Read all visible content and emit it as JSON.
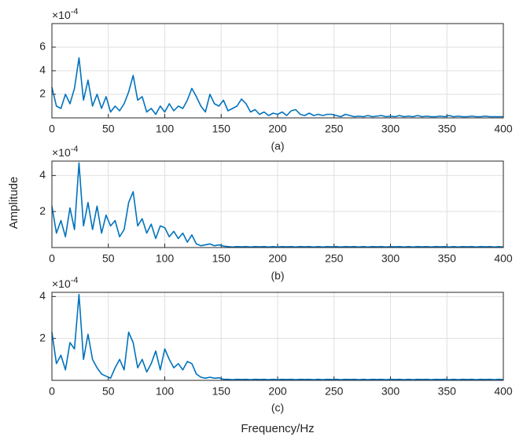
{
  "chart_data": [
    {
      "type": "line",
      "caption": "(a)",
      "y_exponent_base": "×10",
      "y_exponent": "-4",
      "color": "#0072bd",
      "grid": true,
      "xlim": [
        0,
        400
      ],
      "xticks": [
        0,
        50,
        100,
        150,
        200,
        250,
        300,
        350,
        400
      ],
      "ylim": [
        0,
        8
      ],
      "yticks": [
        2,
        4,
        6
      ],
      "x": [
        0,
        4,
        8,
        12,
        16,
        20,
        24,
        28,
        32,
        36,
        40,
        44,
        48,
        52,
        56,
        60,
        64,
        68,
        72,
        76,
        80,
        84,
        88,
        92,
        96,
        100,
        104,
        108,
        112,
        116,
        120,
        124,
        128,
        132,
        136,
        140,
        144,
        148,
        152,
        156,
        160,
        164,
        168,
        172,
        176,
        180,
        184,
        188,
        192,
        196,
        200,
        204,
        208,
        212,
        216,
        220,
        224,
        228,
        232,
        236,
        240,
        244,
        248,
        252,
        256,
        260,
        264,
        268,
        272,
        276,
        280,
        284,
        288,
        292,
        296,
        300,
        304,
        308,
        312,
        316,
        320,
        324,
        328,
        332,
        336,
        340,
        344,
        348,
        352,
        356,
        360,
        364,
        368,
        372,
        376,
        380,
        384,
        388,
        392,
        396,
        400
      ],
      "values": [
        2.6,
        1.0,
        0.8,
        2.0,
        1.2,
        2.5,
        5.1,
        1.5,
        3.2,
        1.0,
        2.0,
        0.8,
        1.8,
        0.5,
        1.0,
        0.6,
        1.2,
        2.2,
        3.6,
        1.5,
        1.8,
        0.5,
        0.8,
        0.3,
        1.0,
        0.5,
        1.2,
        0.6,
        1.0,
        0.8,
        1.5,
        2.5,
        1.8,
        1.0,
        0.5,
        2.0,
        1.2,
        1.0,
        1.5,
        0.6,
        0.8,
        1.0,
        1.6,
        1.2,
        0.5,
        0.7,
        0.3,
        0.5,
        0.2,
        0.4,
        0.3,
        0.5,
        0.2,
        0.6,
        0.7,
        0.3,
        0.2,
        0.4,
        0.2,
        0.3,
        0.2,
        0.3,
        0.3,
        0.2,
        0.1,
        0.3,
        0.2,
        0.1,
        0.15,
        0.1,
        0.2,
        0.1,
        0.15,
        0.2,
        0.1,
        0.15,
        0.1,
        0.2,
        0.1,
        0.15,
        0.1,
        0.2,
        0.1,
        0.15,
        0.1,
        0.1,
        0.15,
        0.1,
        0.2,
        0.1,
        0.15,
        0.1,
        0.1,
        0.15,
        0.1,
        0.1,
        0.15,
        0.1,
        0.1,
        0.1,
        0.1
      ]
    },
    {
      "type": "line",
      "caption": "(b)",
      "ylabel": "Amplitude",
      "y_exponent_base": "×10",
      "y_exponent": "-4",
      "color": "#0072bd",
      "grid": true,
      "xlim": [
        0,
        400
      ],
      "xticks": [
        0,
        50,
        100,
        150,
        200,
        250,
        300,
        350,
        400
      ],
      "ylim": [
        0,
        4.8
      ],
      "yticks": [
        2,
        4
      ],
      "x": [
        0,
        4,
        8,
        12,
        16,
        20,
        24,
        28,
        32,
        36,
        40,
        44,
        48,
        52,
        56,
        60,
        64,
        68,
        72,
        76,
        80,
        84,
        88,
        92,
        96,
        100,
        104,
        108,
        112,
        116,
        120,
        124,
        128,
        132,
        136,
        140,
        144,
        148,
        152,
        156,
        160,
        164,
        168,
        172,
        176,
        180,
        184,
        188,
        192,
        196,
        200,
        204,
        208,
        212,
        216,
        220,
        224,
        228,
        232,
        236,
        240,
        244,
        248,
        252,
        256,
        260,
        264,
        268,
        272,
        276,
        280,
        284,
        288,
        292,
        296,
        300,
        304,
        308,
        312,
        316,
        320,
        324,
        328,
        332,
        336,
        340,
        344,
        348,
        352,
        356,
        360,
        364,
        368,
        372,
        376,
        380,
        384,
        388,
        392,
        396,
        400
      ],
      "values": [
        2.3,
        0.8,
        1.5,
        0.6,
        2.2,
        1.0,
        4.7,
        1.2,
        2.5,
        1.0,
        2.3,
        0.8,
        1.8,
        1.2,
        1.5,
        0.6,
        1.0,
        2.5,
        3.1,
        1.2,
        1.6,
        0.8,
        1.3,
        0.5,
        1.2,
        1.1,
        0.6,
        0.9,
        0.5,
        0.8,
        0.3,
        0.7,
        0.2,
        0.1,
        0.15,
        0.2,
        0.1,
        0.15,
        0.08,
        0.05,
        0.03,
        0.05,
        0.04,
        0.05,
        0.03,
        0.05,
        0.04,
        0.05,
        0.03,
        0.05,
        0.03,
        0.05,
        0.04,
        0.05,
        0.03,
        0.05,
        0.04,
        0.05,
        0.03,
        0.05,
        0.03,
        0.05,
        0.04,
        0.05,
        0.03,
        0.05,
        0.04,
        0.05,
        0.03,
        0.05,
        0.03,
        0.05,
        0.04,
        0.05,
        0.03,
        0.05,
        0.04,
        0.05,
        0.03,
        0.05,
        0.03,
        0.05,
        0.04,
        0.05,
        0.03,
        0.05,
        0.04,
        0.05,
        0.03,
        0.05,
        0.03,
        0.05,
        0.04,
        0.05,
        0.03,
        0.05,
        0.04,
        0.05,
        0.03,
        0.05,
        0.03
      ]
    },
    {
      "type": "line",
      "caption": "(c)",
      "xlabel": "Frequency/Hz",
      "y_exponent_base": "×10",
      "y_exponent": "-4",
      "color": "#0072bd",
      "grid": true,
      "xlim": [
        0,
        400
      ],
      "xticks": [
        0,
        50,
        100,
        150,
        200,
        250,
        300,
        350,
        400
      ],
      "ylim": [
        0,
        4.2
      ],
      "yticks": [
        2,
        4
      ],
      "x": [
        0,
        4,
        8,
        12,
        16,
        20,
        24,
        28,
        32,
        36,
        40,
        44,
        48,
        52,
        56,
        60,
        64,
        68,
        72,
        76,
        80,
        84,
        88,
        92,
        96,
        100,
        104,
        108,
        112,
        116,
        120,
        124,
        128,
        132,
        136,
        140,
        144,
        148,
        152,
        156,
        160,
        164,
        168,
        172,
        176,
        180,
        184,
        188,
        192,
        196,
        200,
        204,
        208,
        212,
        216,
        220,
        224,
        228,
        232,
        236,
        240,
        244,
        248,
        252,
        256,
        260,
        264,
        268,
        272,
        276,
        280,
        284,
        288,
        292,
        296,
        300,
        304,
        308,
        312,
        316,
        320,
        324,
        328,
        332,
        336,
        340,
        344,
        348,
        352,
        356,
        360,
        364,
        368,
        372,
        376,
        380,
        384,
        388,
        392,
        396,
        400
      ],
      "values": [
        2.3,
        0.8,
        1.2,
        0.5,
        1.8,
        1.5,
        4.1,
        1.0,
        2.2,
        1.0,
        0.6,
        0.3,
        0.2,
        0.1,
        0.6,
        1.0,
        0.5,
        2.3,
        1.8,
        0.6,
        1.0,
        0.4,
        0.8,
        1.4,
        0.5,
        1.5,
        1.0,
        0.6,
        0.8,
        0.5,
        0.9,
        0.8,
        0.3,
        0.15,
        0.1,
        0.15,
        0.1,
        0.12,
        0.05,
        0.05,
        0.03,
        0.05,
        0.04,
        0.05,
        0.03,
        0.05,
        0.04,
        0.05,
        0.03,
        0.05,
        0.03,
        0.05,
        0.04,
        0.05,
        0.03,
        0.05,
        0.04,
        0.05,
        0.03,
        0.05,
        0.03,
        0.05,
        0.04,
        0.05,
        0.03,
        0.05,
        0.04,
        0.05,
        0.03,
        0.05,
        0.03,
        0.05,
        0.04,
        0.05,
        0.03,
        0.05,
        0.04,
        0.05,
        0.03,
        0.05,
        0.03,
        0.05,
        0.04,
        0.05,
        0.03,
        0.05,
        0.04,
        0.05,
        0.03,
        0.05,
        0.03,
        0.05,
        0.04,
        0.05,
        0.03,
        0.05,
        0.04,
        0.05,
        0.03,
        0.05,
        0.03
      ]
    }
  ]
}
